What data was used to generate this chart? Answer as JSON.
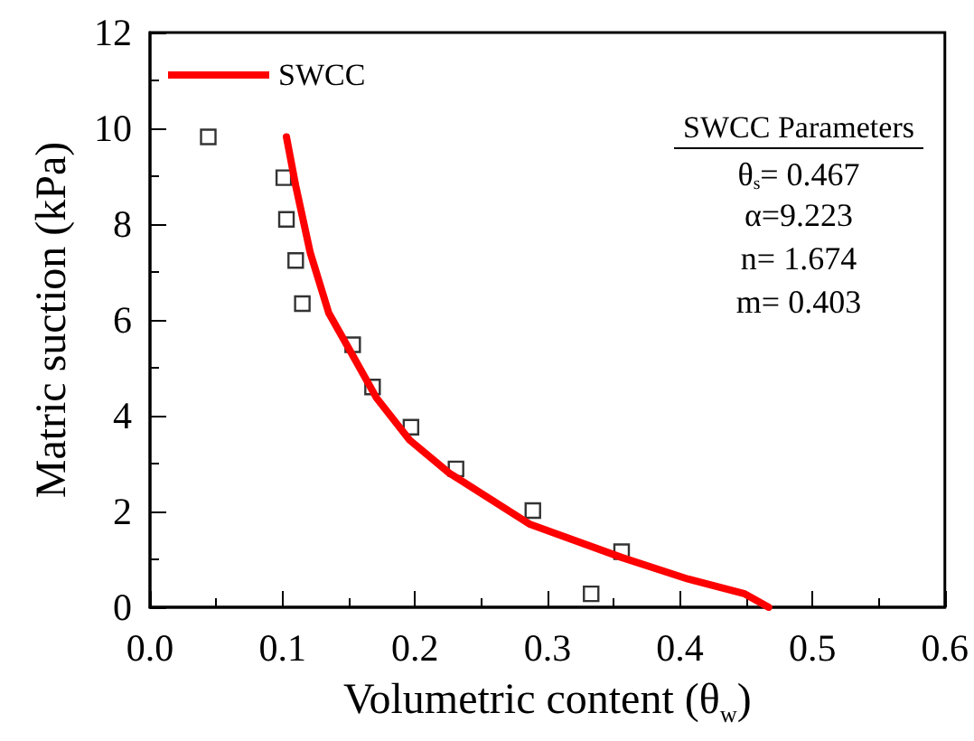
{
  "chart_data": {
    "type": "scatter",
    "xlabel": "Volumetric content (θ$_{w}$)",
    "ylabel": "Matric suction (kPa)",
    "xlim": [
      0,
      0.6
    ],
    "xticks": [
      {
        "value": 0,
        "label": "0.0"
      },
      0.1,
      0.2,
      0.3,
      0.4,
      0.5,
      0.6
    ],
    "ylim": [
      0,
      12
    ],
    "yticks": [
      0,
      2,
      4,
      6,
      8,
      10,
      12
    ],
    "grid": false,
    "legend": "top left",
    "annotations": [
      "SWCC Parameters",
      "θ$_{s}$= 0.467",
      "α=9.223",
      "n= 1.674",
      "m= 0.403"
    ],
    "series": [
      {
        "color": "#000000",
        "marker": "square",
        "x": [
          0.044,
          0.101,
          0.103,
          0.11,
          0.115,
          0.153,
          0.168,
          0.197,
          0.231,
          0.289,
          0.356,
          0.333
        ],
        "values": [
          9.82,
          8.97,
          8.1,
          7.24,
          6.34,
          5.48,
          4.6,
          3.76,
          2.89,
          2.02,
          1.16,
          0.28
        ]
      },
      {
        "type": "line",
        "name": "SWCC",
        "color": "#ff0000",
        "marker": "none",
        "line_style": "solid",
        "x": [
          0.103,
          0.11,
          0.121,
          0.135,
          0.153,
          0.171,
          0.196,
          0.226,
          0.287,
          0.356,
          0.406,
          0.449,
          0.467
        ],
        "values": [
          9.82,
          8.8,
          7.4,
          6.14,
          5.26,
          4.37,
          3.49,
          2.8,
          1.73,
          1.04,
          0.59,
          0.28,
          0
        ]
      }
    ]
  }
}
